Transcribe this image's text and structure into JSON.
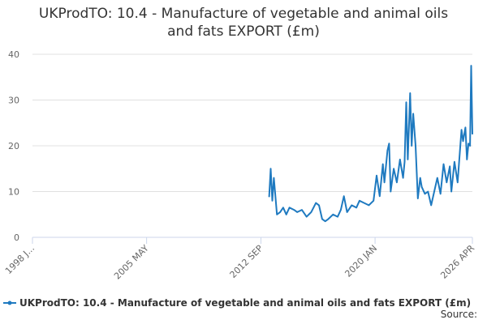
{
  "chart_data": {
    "type": "line",
    "title": "UKProdTO: 10.4 - Manufacture of vegetable and animal oils and fats EXPORT (£m)",
    "x": [
      2013.2,
      2013.3,
      2013.4,
      2013.5,
      2013.6,
      2013.7,
      2013.9,
      2014.1,
      2014.3,
      2014.5,
      2014.8,
      2015.0,
      2015.3,
      2015.6,
      2015.9,
      2016.2,
      2016.4,
      2016.6,
      2016.8,
      2017.0,
      2017.3,
      2017.6,
      2017.8,
      2018.0,
      2018.2,
      2018.5,
      2018.8,
      2019.0,
      2019.3,
      2019.6,
      2019.9,
      2020.1,
      2020.3,
      2020.5,
      2020.6,
      2020.8,
      2020.9,
      2021.0,
      2021.2,
      2021.4,
      2021.6,
      2021.8,
      2021.9,
      2022.0,
      2022.1,
      2022.25,
      2022.35,
      2022.45,
      2022.6,
      2022.75,
      2022.9,
      2023.0,
      2023.2,
      2023.4,
      2023.6,
      2023.8,
      2024.0,
      2024.2,
      2024.4,
      2024.6,
      2024.8,
      2024.9,
      2025.1,
      2025.3,
      2025.45,
      2025.55,
      2025.65,
      2025.8,
      2025.9,
      2026.0,
      2026.1,
      2026.17,
      2026.25
    ],
    "series": [
      {
        "name": "UKProdTO: 10.4 - Manufacture of vegetable and animal oils and fats EXPORT (£m)",
        "color": "#1f7ac0",
        "values": [
          8.8,
          15,
          8,
          13,
          9,
          5,
          5.5,
          6.5,
          5,
          6.5,
          6,
          5.5,
          6,
          4.5,
          5.5,
          7.5,
          7,
          4,
          3.5,
          4,
          5,
          4.5,
          6,
          9,
          5.5,
          7,
          6.5,
          8,
          7.5,
          7,
          8,
          13.5,
          9,
          16,
          12,
          19,
          20.5,
          10,
          15,
          12,
          17,
          13,
          16.5,
          29.5,
          17,
          31.5,
          20,
          27,
          20,
          8.5,
          13,
          11,
          9.5,
          10,
          7,
          10,
          13,
          9.5,
          16,
          12,
          15.5,
          10,
          16.5,
          12,
          19,
          23.5,
          21,
          24,
          17,
          20.5,
          20,
          37.5,
          22.5
        ]
      }
    ],
    "xlim": [
      1998,
      2026.25
    ],
    "xticks": [
      {
        "value": 1998,
        "label": "1998 J..."
      },
      {
        "value": 2005.33,
        "label": "2005 MAY"
      },
      {
        "value": 2012.67,
        "label": "2012 SEP"
      },
      {
        "value": 2020,
        "label": "2020 JAN"
      },
      {
        "value": 2026.25,
        "label": "2026 APR"
      }
    ],
    "ylim": [
      0,
      40
    ],
    "yticks": [
      0,
      10,
      20,
      30,
      40
    ],
    "grid": true,
    "source": "Source:"
  }
}
